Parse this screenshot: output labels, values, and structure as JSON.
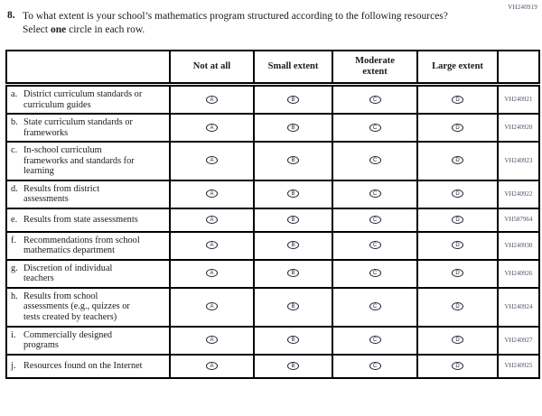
{
  "page_code": "VH240919",
  "question": {
    "number": "8.",
    "text_before_bold": "To what extent is your school’s mathematics program structured according to the following resources? Select ",
    "bold_word": "one",
    "text_after_bold": " circle in each row."
  },
  "table": {
    "columns": [
      "",
      "Not at all",
      "Small extent",
      "Moderate extent",
      "Large extent",
      ""
    ],
    "option_letters": [
      "A",
      "B",
      "C",
      "D"
    ],
    "rows": [
      {
        "letter": "a.",
        "text": "District curriculum standards or curriculum guides",
        "code": "VH240921"
      },
      {
        "letter": "b.",
        "text": "State curriculum standards or frameworks",
        "code": "VH240920"
      },
      {
        "letter": "c.",
        "text": "In-school curriculum frameworks and standards for learning",
        "code": "VH240923"
      },
      {
        "letter": "d.",
        "text": "Results from district assessments",
        "code": "VH240922"
      },
      {
        "letter": "e.",
        "text": "Results from state assessments",
        "code": "VH587964"
      },
      {
        "letter": "f.",
        "text": "Recommendations from school mathematics department",
        "code": "VH240930"
      },
      {
        "letter": "g.",
        "text": "Discretion of individual teachers",
        "code": "VH240926"
      },
      {
        "letter": "h.",
        "text": "Results from school assessments (e.g., quizzes or tests created by teachers)",
        "code": "VH240924"
      },
      {
        "letter": "i.",
        "text": "Commercially designed programs",
        "code": "VH240927"
      },
      {
        "letter": "j.",
        "text": "Resources found on the Internet",
        "code": "VH240925"
      }
    ]
  },
  "colors": {
    "border": "#000000",
    "text": "#1a1a1a",
    "code_text": "#4a4a66",
    "oval": "#232338",
    "background": "#ffffff"
  }
}
